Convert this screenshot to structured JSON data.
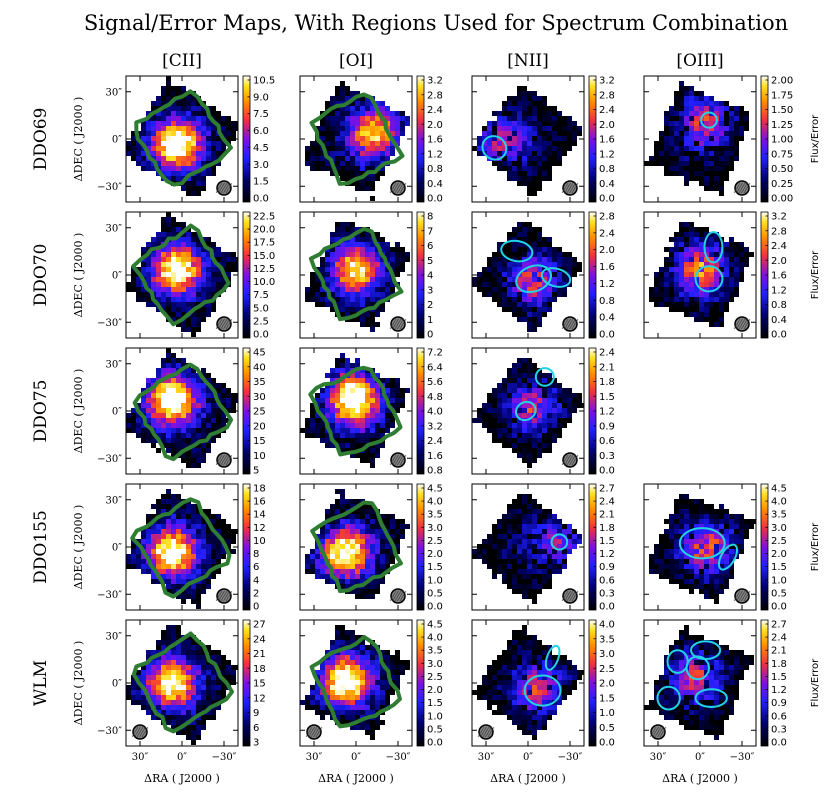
{
  "title": "Signal/Error Maps, With Regions Used for Spectrum Combination",
  "columns": [
    "[CII]",
    "[OI]",
    "[NII]",
    "[OIII]"
  ],
  "rows": [
    "DDO69",
    "DDO70",
    "DDO75",
    "DDO155",
    "WLM"
  ],
  "axis_labels": {
    "ylabel": "ΔDEC ( J2000 )",
    "xlabel": "ΔRA ( J2000 )",
    "colorbar_label": "Flux/Error"
  },
  "tick_labels": {
    "y": [
      "30″",
      "0″",
      "−30″"
    ],
    "x": [
      "30″",
      "0″",
      "−30″"
    ]
  },
  "colors": {
    "region_contour": "#2e7d32",
    "region_ellipse": "#22d3e6",
    "beam": "#808080"
  },
  "chart_data": {
    "type": "heatmap",
    "colormap": "gnuplot2",
    "xlim_arcsec": [
      40,
      -40
    ],
    "ylim_arcsec": [
      -40,
      40
    ],
    "panels": [
      {
        "row": "DDO69",
        "line": "[CII]",
        "cbar": [
          "0.0",
          "1.5",
          "3.0",
          "4.5",
          "6.0",
          "7.5",
          "9.0",
          "10.5"
        ],
        "region": "contour",
        "cbar_label": false
      },
      {
        "row": "DDO69",
        "line": "[OI]",
        "cbar": [
          "0.0",
          "0.4",
          "0.8",
          "1.2",
          "1.6",
          "2.0",
          "2.4",
          "2.8",
          "3.2"
        ],
        "region": "contour",
        "cbar_label": false
      },
      {
        "row": "DDO69",
        "line": "[NII]",
        "cbar": [
          "0.0",
          "0.4",
          "0.8",
          "1.2",
          "1.6",
          "2.0",
          "2.4",
          "2.8",
          "3.2"
        ],
        "region": "ellipses",
        "cbar_label": false
      },
      {
        "row": "DDO69",
        "line": "[OIII]",
        "cbar": [
          "0.00",
          "0.25",
          "0.50",
          "0.75",
          "1.00",
          "1.25",
          "1.50",
          "1.75",
          "2.00"
        ],
        "region": "ellipses",
        "cbar_label": true
      },
      {
        "row": "DDO70",
        "line": "[CII]",
        "cbar": [
          "0.0",
          "2.5",
          "5.0",
          "7.5",
          "10.0",
          "12.5",
          "15.0",
          "17.5",
          "20.0",
          "22.5"
        ],
        "region": "contour",
        "cbar_label": false
      },
      {
        "row": "DDO70",
        "line": "[OI]",
        "cbar": [
          "0",
          "1",
          "2",
          "3",
          "4",
          "5",
          "6",
          "7",
          "8"
        ],
        "region": "contour",
        "cbar_label": false
      },
      {
        "row": "DDO70",
        "line": "[NII]",
        "cbar": [
          "0.0",
          "0.4",
          "0.8",
          "1.2",
          "1.6",
          "2.0",
          "2.4",
          "2.8"
        ],
        "region": "ellipses",
        "cbar_label": false
      },
      {
        "row": "DDO70",
        "line": "[OIII]",
        "cbar": [
          "0.0",
          "0.4",
          "0.8",
          "1.2",
          "1.6",
          "2.0",
          "2.4",
          "2.8",
          "3.2"
        ],
        "region": "ellipses",
        "cbar_label": true
      },
      {
        "row": "DDO75",
        "line": "[CII]",
        "cbar": [
          "5",
          "10",
          "15",
          "20",
          "25",
          "30",
          "35",
          "40",
          "45"
        ],
        "region": "contour",
        "cbar_label": false
      },
      {
        "row": "DDO75",
        "line": "[OI]",
        "cbar": [
          "0.8",
          "1.6",
          "2.4",
          "3.2",
          "4.0",
          "4.8",
          "5.6",
          "6.4",
          "7.2"
        ],
        "region": "contour",
        "cbar_label": false
      },
      {
        "row": "DDO75",
        "line": "[NII]",
        "cbar": [
          "0.0",
          "0.3",
          "0.6",
          "0.9",
          "1.2",
          "1.5",
          "1.8",
          "2.1",
          "2.4"
        ],
        "region": "ellipses",
        "cbar_label": false
      },
      {
        "row": "DDO155",
        "line": "[CII]",
        "cbar": [
          "0",
          "2",
          "4",
          "6",
          "8",
          "10",
          "12",
          "14",
          "16",
          "18"
        ],
        "region": "contour",
        "cbar_label": false
      },
      {
        "row": "DDO155",
        "line": "[OI]",
        "cbar": [
          "0.0",
          "0.5",
          "1.0",
          "1.5",
          "2.0",
          "2.5",
          "3.0",
          "3.5",
          "4.0",
          "4.5"
        ],
        "region": "contour",
        "cbar_label": false
      },
      {
        "row": "DDO155",
        "line": "[NII]",
        "cbar": [
          "0.0",
          "0.3",
          "0.6",
          "0.9",
          "1.2",
          "1.5",
          "1.8",
          "2.1",
          "2.4",
          "2.7"
        ],
        "region": "ellipses",
        "cbar_label": false
      },
      {
        "row": "DDO155",
        "line": "[OIII]",
        "cbar": [
          "0.0",
          "0.5",
          "1.0",
          "1.5",
          "2.0",
          "2.5",
          "3.0",
          "3.5",
          "4.0",
          "4.5"
        ],
        "region": "ellipses",
        "cbar_label": true
      },
      {
        "row": "WLM",
        "line": "[CII]",
        "cbar": [
          "3",
          "6",
          "9",
          "12",
          "15",
          "18",
          "21",
          "24",
          "27"
        ],
        "region": "contour",
        "cbar_label": false
      },
      {
        "row": "WLM",
        "line": "[OI]",
        "cbar": [
          "0.0",
          "0.5",
          "1.0",
          "1.5",
          "2.0",
          "2.5",
          "3.0",
          "3.5",
          "4.0",
          "4.5"
        ],
        "region": "contour",
        "cbar_label": false
      },
      {
        "row": "WLM",
        "line": "[NII]",
        "cbar": [
          "0.0",
          "0.5",
          "1.0",
          "1.5",
          "2.0",
          "2.5",
          "3.0",
          "3.5",
          "4.0"
        ],
        "region": "ellipses",
        "cbar_label": false
      },
      {
        "row": "WLM",
        "line": "[OIII]",
        "cbar": [
          "0.0",
          "0.3",
          "0.6",
          "0.9",
          "1.2",
          "1.5",
          "1.8",
          "2.1",
          "2.4",
          "2.7"
        ],
        "region": "ellipses",
        "cbar_label": true
      }
    ]
  }
}
